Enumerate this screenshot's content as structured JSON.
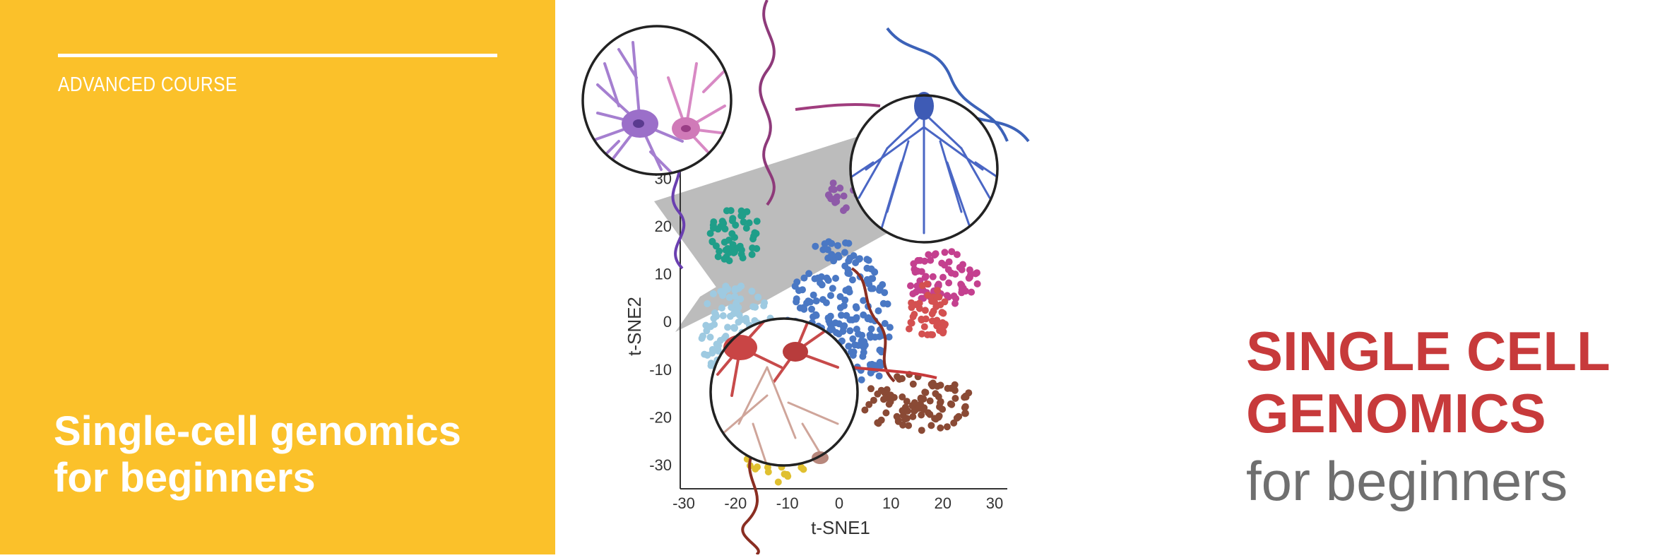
{
  "banner": {
    "kicker": "ADVANCED COURSE",
    "title_line1": "Single-cell genomics",
    "title_line2": "for beginners",
    "colors": {
      "panel": "#fbc12a",
      "text": "#ffffff"
    }
  },
  "illustration": {
    "heading_line1": "SINGLE CELL",
    "heading_line2": "GENOMICS",
    "subheading": "for beginners",
    "colors": {
      "heading": "#c73a3b",
      "subheading": "#6f6f6f"
    }
  },
  "chart_data": {
    "type": "scatter",
    "xlabel": "t-SNE1",
    "ylabel": "t-SNE2",
    "xlim": [
      -30,
      30
    ],
    "ylim": [
      -35,
      33
    ],
    "x_ticks": [
      "-30",
      "-20",
      "-10",
      "0",
      "10",
      "20",
      "30"
    ],
    "y_ticks": [
      "30",
      "20",
      "10",
      "0",
      "-10",
      "-20",
      "-30"
    ],
    "clusters": [
      {
        "color": "#1f9e89",
        "center": [
          -20,
          18
        ],
        "spread": [
          5,
          6
        ],
        "count": 55
      },
      {
        "color": "#9ecae1",
        "center": [
          -20,
          -2
        ],
        "spread": [
          7,
          10
        ],
        "count": 120
      },
      {
        "color": "#e0c030",
        "center": [
          -12,
          -28
        ],
        "spread": [
          6,
          6
        ],
        "count": 50
      },
      {
        "color": "#4a78c4",
        "center": [
          0,
          0
        ],
        "spread": [
          10,
          18
        ],
        "count": 230
      },
      {
        "color": "#8e5aa8",
        "center": [
          2,
          27
        ],
        "spread": [
          5,
          4
        ],
        "count": 25
      },
      {
        "color": "#c4408f",
        "center": [
          20,
          9
        ],
        "spread": [
          7,
          6
        ],
        "count": 70
      },
      {
        "color": "#d45050",
        "center": [
          17,
          1
        ],
        "spread": [
          4,
          7
        ],
        "count": 45
      },
      {
        "color": "#8a4a35",
        "center": [
          15,
          -17
        ],
        "spread": [
          11,
          6
        ],
        "count": 95
      }
    ]
  }
}
